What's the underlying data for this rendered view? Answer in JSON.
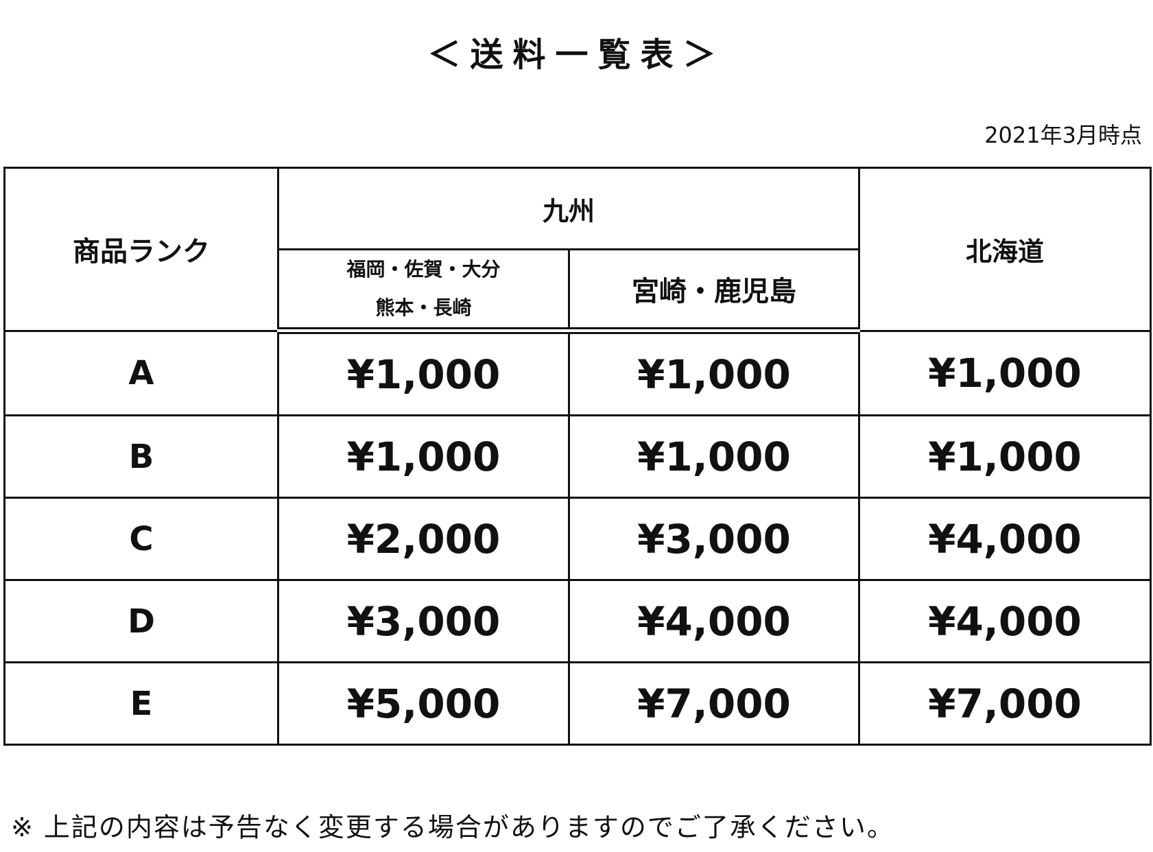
{
  "title": "＜送料一覧表＞",
  "date_note": "2021年3月時点",
  "table": {
    "headers": {
      "rank": "商品ランク",
      "kyushu": "九州",
      "kyushu_sub1_line1": "福岡・佐賀・大分",
      "kyushu_sub1_line2": "熊本・長崎",
      "kyushu_sub2": "宮崎・鹿児島",
      "hokkaido": "北海道"
    },
    "rows": [
      {
        "rank": "A",
        "k1": "¥1,000",
        "k2": "¥1,000",
        "h": "¥1,000"
      },
      {
        "rank": "B",
        "k1": "¥1,000",
        "k2": "¥1,000",
        "h": "¥1,000"
      },
      {
        "rank": "C",
        "k1": "¥2,000",
        "k2": "¥3,000",
        "h": "¥4,000"
      },
      {
        "rank": "D",
        "k1": "¥3,000",
        "k2": "¥4,000",
        "h": "¥4,000"
      },
      {
        "rank": "E",
        "k1": "¥5,000",
        "k2": "¥7,000",
        "h": "¥7,000"
      }
    ]
  },
  "footnote": "※ 上記の内容は予告なく変更する場合がありますのでご了承ください。"
}
